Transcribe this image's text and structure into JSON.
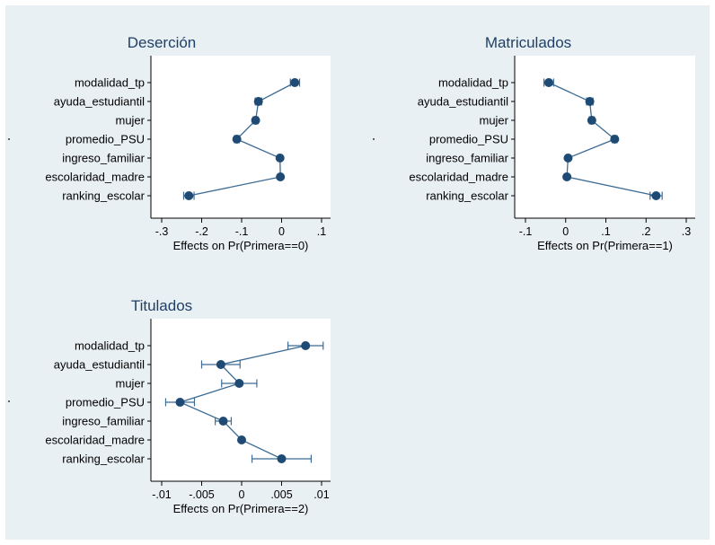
{
  "colors": {
    "background": "#e9f0f4",
    "plot_area": "#ffffff",
    "marker": "#1e4a74",
    "line": "#3c6b94",
    "axis": "#000000",
    "text": "#000000"
  },
  "chart_data": [
    {
      "type": "scatter",
      "title": "Deserción",
      "xlabel": "Effects on Pr(Primera==0)",
      "ylabel": "",
      "categories": [
        "modalidad_tp",
        "ayuda_estudiantil",
        "mujer",
        "promedio_PSU",
        "ingreso_familiar",
        "escolaridad_madre",
        "ranking_escolar"
      ],
      "xlim": [
        -0.3,
        0.1
      ],
      "xticks": [
        -0.3,
        -0.2,
        -0.1,
        0,
        0.1
      ],
      "xtick_labels": [
        "-.3",
        "-.2",
        "-.1",
        "0",
        ".1"
      ],
      "values": [
        0.033,
        -0.058,
        -0.065,
        -0.112,
        -0.004,
        -0.003,
        -0.232
      ],
      "ci_low": [
        0.022,
        -0.066,
        -0.071,
        -0.118,
        -0.008,
        -0.007,
        -0.245
      ],
      "ci_high": [
        0.045,
        -0.05,
        -0.059,
        -0.106,
        0.0,
        0.001,
        -0.219
      ],
      "grid": false,
      "connected": true
    },
    {
      "type": "scatter",
      "title": "Matriculados",
      "xlabel": "Effects on Pr(Primera==1)",
      "ylabel": "",
      "categories": [
        "modalidad_tp",
        "ayuda_estudiantil",
        "mujer",
        "promedio_PSU",
        "ingreso_familiar",
        "escolaridad_madre",
        "ranking_escolar"
      ],
      "xlim": [
        -0.1,
        0.3
      ],
      "xticks": [
        -0.1,
        0,
        0.1,
        0.2,
        0.3
      ],
      "xtick_labels": [
        "-.1",
        "0",
        ".1",
        ".2",
        ".3"
      ],
      "values": [
        -0.042,
        0.06,
        0.065,
        0.122,
        0.006,
        0.003,
        0.225
      ],
      "ci_low": [
        -0.054,
        0.052,
        0.059,
        0.116,
        0.002,
        -0.001,
        0.21
      ],
      "ci_high": [
        -0.03,
        0.068,
        0.071,
        0.128,
        0.01,
        0.007,
        0.24
      ],
      "grid": false,
      "connected": true
    },
    {
      "type": "scatter",
      "title": "Titulados",
      "xlabel": "Effects on Pr(Primera==2)",
      "ylabel": "",
      "categories": [
        "modalidad_tp",
        "ayuda_estudiantil",
        "mujer",
        "promedio_PSU",
        "ingreso_familiar",
        "escolaridad_madre",
        "ranking_escolar"
      ],
      "xlim": [
        -0.01,
        0.01
      ],
      "xticks": [
        -0.01,
        -0.005,
        0,
        0.005,
        0.01
      ],
      "xtick_labels": [
        "-.01",
        "-.005",
        "0",
        ".005",
        ".01"
      ],
      "values": [
        0.008,
        -0.0026,
        -0.0003,
        -0.0077,
        -0.0023,
        0.0,
        0.005
      ],
      "ci_low": [
        0.0058,
        -0.005,
        -0.0025,
        -0.0095,
        -0.0033,
        -0.0002,
        0.0013
      ],
      "ci_high": [
        0.0102,
        -0.0002,
        0.0019,
        -0.0059,
        -0.0013,
        0.0002,
        0.0087
      ],
      "grid": false,
      "connected": true
    }
  ]
}
